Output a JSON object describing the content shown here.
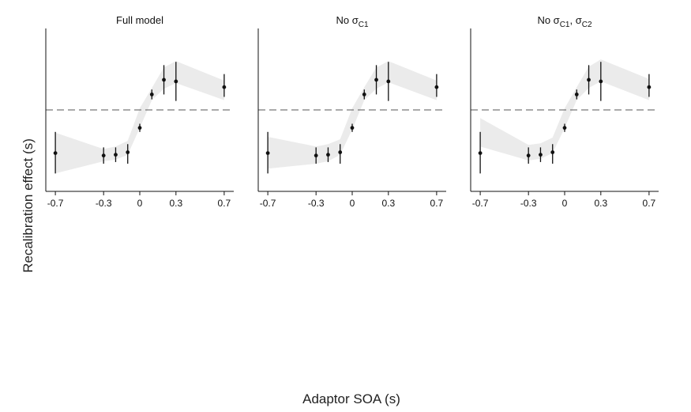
{
  "chart_data": {
    "type": "scatter",
    "xlabel": "Adaptor SOA (s)",
    "ylabel": "Recalibration effect (s)",
    "xlim": [
      -0.74,
      0.74
    ],
    "ylim": [
      -1.0,
      1.0
    ],
    "xticks": [
      -0.7,
      -0.3,
      0,
      0.3,
      0.7
    ],
    "xtick_labels": [
      "-0.7",
      "-0.3",
      "0",
      "0.3",
      "0.7"
    ],
    "reference_line_y": 0,
    "observed": {
      "x": [
        -0.7,
        -0.3,
        -0.2,
        -0.1,
        0,
        0.1,
        0.2,
        0.3,
        0.7
      ],
      "y": [
        -0.53,
        -0.56,
        -0.55,
        -0.52,
        -0.22,
        0.19,
        0.37,
        0.35,
        0.28
      ],
      "err_low": [
        -0.78,
        -0.66,
        -0.64,
        -0.66,
        -0.27,
        0.13,
        0.19,
        0.11,
        0.16
      ],
      "err_high": [
        -0.27,
        -0.46,
        -0.46,
        -0.42,
        -0.17,
        0.25,
        0.55,
        0.59,
        0.44
      ]
    },
    "panels": [
      {
        "title_main": "Full model",
        "title_sub": "",
        "title_tail": "",
        "title_sub2": "",
        "band": {
          "x": [
            -0.7,
            -0.3,
            -0.2,
            -0.1,
            0,
            0.1,
            0.2,
            0.3,
            0.7
          ],
          "low": [
            -0.78,
            -0.63,
            -0.61,
            -0.55,
            -0.22,
            0.12,
            0.26,
            0.33,
            0.12
          ],
          "high": [
            -0.28,
            -0.48,
            -0.45,
            -0.38,
            0.02,
            0.27,
            0.52,
            0.6,
            0.36
          ]
        }
      },
      {
        "title_main": "No σ",
        "title_sub": "C1",
        "title_tail": "",
        "title_sub2": "",
        "band": {
          "x": [
            -0.7,
            -0.3,
            -0.2,
            -0.1,
            0,
            0.1,
            0.2,
            0.3,
            0.7
          ],
          "low": [
            -0.72,
            -0.66,
            -0.63,
            -0.55,
            -0.24,
            0.12,
            0.26,
            0.34,
            0.12
          ],
          "high": [
            -0.33,
            -0.45,
            -0.42,
            -0.36,
            0.02,
            0.28,
            0.52,
            0.6,
            0.36
          ]
        }
      },
      {
        "title_main": "No σ",
        "title_sub": "C1",
        "title_tail": ", σ",
        "title_sub2": "C2",
        "band": {
          "x": [
            -0.7,
            -0.3,
            -0.2,
            -0.1,
            0,
            0.1,
            0.2,
            0.3,
            0.7
          ],
          "low": [
            -0.45,
            -0.62,
            -0.6,
            -0.53,
            -0.22,
            0.12,
            0.27,
            0.35,
            0.12
          ],
          "high": [
            -0.1,
            -0.43,
            -0.41,
            -0.34,
            0.02,
            0.28,
            0.53,
            0.62,
            0.38
          ]
        }
      }
    ]
  }
}
